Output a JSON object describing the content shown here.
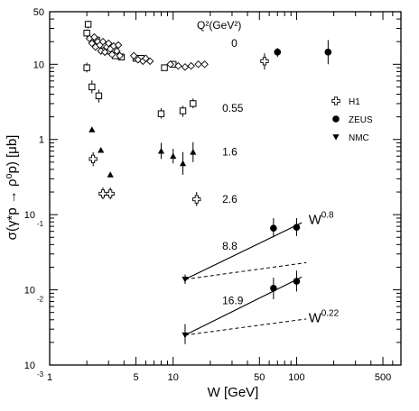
{
  "chart_data": {
    "type": "scatter",
    "title": "",
    "xlabel": "W [GeV]",
    "ylabel": "σ(γ*p → ρ⁰p) [μb]",
    "xscale": "log",
    "yscale": "log",
    "xlim": [
      1,
      700
    ],
    "ylim": [
      0.001,
      50
    ],
    "x_ticks": [
      {
        "value": 1,
        "label": "1"
      },
      {
        "value": 5,
        "label": "5"
      },
      {
        "value": 10,
        "label": "10"
      },
      {
        "value": 50,
        "label": "50"
      },
      {
        "value": 100,
        "label": "100"
      },
      {
        "value": 500,
        "label": "500"
      }
    ],
    "y_ticks": [
      {
        "value": 50,
        "label": "50",
        "exp": ""
      },
      {
        "value": 10,
        "label": "10",
        "exp": ""
      },
      {
        "value": 1,
        "label": "1",
        "exp": ""
      },
      {
        "value": 0.1,
        "label": "10",
        "exp": "-1"
      },
      {
        "value": 0.01,
        "label": "10",
        "exp": "-2"
      },
      {
        "value": 0.001,
        "label": "10",
        "exp": "-3"
      }
    ],
    "q2_header": "Q²(GeV²)",
    "q2_labels": [
      {
        "text": "0",
        "x": 25,
        "y": 19
      },
      {
        "text": "0.55",
        "x": 25,
        "y": 2.6
      },
      {
        "text": "1.6",
        "x": 25,
        "y": 0.68
      },
      {
        "text": "2.6",
        "x": 25,
        "y": 0.16
      },
      {
        "text": "8.8",
        "x": 25,
        "y": 0.038
      },
      {
        "text": "16.9",
        "x": 25,
        "y": 0.0072
      }
    ],
    "legend": {
      "position": "right",
      "entries": [
        {
          "label": "H1",
          "marker": "open-cross"
        },
        {
          "label": "ZEUS",
          "marker": "filled-circle"
        },
        {
          "label": "NMC",
          "marker": "filled-triangle-down"
        }
      ]
    },
    "series": [
      {
        "name": "ZEUS",
        "marker": "filled-circle",
        "points": [
          {
            "x": 70,
            "y": 14.5,
            "lo": 12.5,
            "hi": 16.5
          },
          {
            "x": 180,
            "y": 14.5,
            "lo": 10,
            "hi": 21
          },
          {
            "x": 65,
            "y": 0.066,
            "lo": 0.05,
            "hi": 0.09
          },
          {
            "x": 100,
            "y": 0.068,
            "lo": 0.052,
            "hi": 0.09
          },
          {
            "x": 65,
            "y": 0.0105,
            "lo": 0.0075,
            "hi": 0.0145
          },
          {
            "x": 100,
            "y": 0.013,
            "lo": 0.0095,
            "hi": 0.018
          }
        ]
      },
      {
        "name": "H1",
        "marker": "open-cross",
        "points": [
          {
            "x": 55,
            "y": 11,
            "lo": 8.5,
            "hi": 14
          },
          {
            "x": 2.25,
            "y": 0.55,
            "lo": 0.44,
            "hi": 0.68
          },
          {
            "x": 2.7,
            "y": 0.19,
            "lo": 0.16,
            "hi": 0.23
          },
          {
            "x": 3.1,
            "y": 0.19,
            "lo": 0.16,
            "hi": 0.23
          },
          {
            "x": 15.5,
            "y": 0.16,
            "lo": 0.13,
            "hi": 0.2
          }
        ]
      },
      {
        "name": "NMC",
        "marker": "filled-triangle-down",
        "points": [
          {
            "x": 12.5,
            "y": 0.0138,
            "lo": 0.012,
            "hi": 0.016
          },
          {
            "x": 12.5,
            "y": 0.0025,
            "lo": 0.0019,
            "hi": 0.0035
          }
        ]
      },
      {
        "name": "",
        "marker": "open-square",
        "points": [
          {
            "x": 2.0,
            "y": 9.0,
            "lo": 7.8,
            "hi": 10.5
          },
          {
            "x": 2.0,
            "y": 26,
            "lo": 23,
            "hi": 29
          },
          {
            "x": 2.05,
            "y": 34,
            "lo": 30,
            "hi": 38
          },
          {
            "x": 2.2,
            "y": 5.0,
            "lo": 4.1,
            "hi": 6.1
          },
          {
            "x": 2.5,
            "y": 3.8,
            "lo": 3.1,
            "hi": 4.6
          },
          {
            "x": 2.4,
            "y": 21
          },
          {
            "x": 2.7,
            "y": 18
          },
          {
            "x": 3.0,
            "y": 15
          },
          {
            "x": 3.4,
            "y": 13
          },
          {
            "x": 3.8,
            "y": 12.5
          },
          {
            "x": 5.0,
            "y": 12
          },
          {
            "x": 5.5,
            "y": 12
          },
          {
            "x": 8.0,
            "y": 2.2,
            "lo": 1.9,
            "hi": 2.6
          },
          {
            "x": 8.5,
            "y": 9.0
          },
          {
            "x": 10.0,
            "y": 10
          },
          {
            "x": 12.0,
            "y": 2.4,
            "lo": 2.0,
            "hi": 2.8
          },
          {
            "x": 14.5,
            "y": 3.0,
            "lo": 2.6,
            "hi": 3.5
          }
        ]
      },
      {
        "name": "",
        "marker": "open-diamond",
        "points": [
          {
            "x": 2.1,
            "y": 22
          },
          {
            "x": 2.2,
            "y": 19
          },
          {
            "x": 2.3,
            "y": 23
          },
          {
            "x": 2.35,
            "y": 17
          },
          {
            "x": 2.45,
            "y": 20
          },
          {
            "x": 2.55,
            "y": 18
          },
          {
            "x": 2.6,
            "y": 15
          },
          {
            "x": 2.7,
            "y": 20
          },
          {
            "x": 2.8,
            "y": 14.5
          },
          {
            "x": 2.9,
            "y": 17
          },
          {
            "x": 3.0,
            "y": 19
          },
          {
            "x": 3.1,
            "y": 16
          },
          {
            "x": 3.2,
            "y": 13.5
          },
          {
            "x": 3.3,
            "y": 17.5
          },
          {
            "x": 3.5,
            "y": 15
          },
          {
            "x": 3.6,
            "y": 18
          },
          {
            "x": 3.7,
            "y": 13
          },
          {
            "x": 4.8,
            "y": 13
          },
          {
            "x": 5.2,
            "y": 11.5
          },
          {
            "x": 5.7,
            "y": 11
          },
          {
            "x": 6.0,
            "y": 12
          },
          {
            "x": 6.5,
            "y": 11
          },
          {
            "x": 9.5,
            "y": 10
          },
          {
            "x": 11.0,
            "y": 9.5
          },
          {
            "x": 12.5,
            "y": 9.2
          },
          {
            "x": 14.0,
            "y": 9.5
          },
          {
            "x": 16.0,
            "y": 10
          },
          {
            "x": 18.0,
            "y": 10
          }
        ]
      },
      {
        "name": "",
        "marker": "filled-triangle-up",
        "points": [
          {
            "x": 2.2,
            "y": 1.35
          },
          {
            "x": 2.6,
            "y": 0.72
          },
          {
            "x": 3.1,
            "y": 0.34
          },
          {
            "x": 8.0,
            "y": 0.7,
            "lo": 0.55,
            "hi": 0.9
          },
          {
            "x": 10.0,
            "y": 0.6,
            "lo": 0.48,
            "hi": 0.75
          },
          {
            "x": 12.0,
            "y": 0.48,
            "lo": 0.34,
            "hi": 0.68
          },
          {
            "x": 14.5,
            "y": 0.68,
            "lo": 0.5,
            "hi": 0.92
          }
        ]
      }
    ],
    "fits": [
      {
        "style": "solid",
        "x": [
          12.5,
          110
        ],
        "y": [
          0.0138,
          0.078
        ]
      },
      {
        "style": "dashed",
        "x": [
          12.5,
          120
        ],
        "y": [
          0.0138,
          0.023
        ]
      },
      {
        "style": "solid",
        "x": [
          12.5,
          110
        ],
        "y": [
          0.0025,
          0.0148
        ]
      },
      {
        "style": "dashed",
        "x": [
          12.5,
          120
        ],
        "y": [
          0.0025,
          0.0041
        ]
      }
    ],
    "fit_labels": [
      {
        "base": "W",
        "exp": "0.8",
        "x": 125,
        "y": 0.075
      },
      {
        "base": "W",
        "exp": "0.22",
        "x": 125,
        "y": 0.0037
      }
    ]
  }
}
